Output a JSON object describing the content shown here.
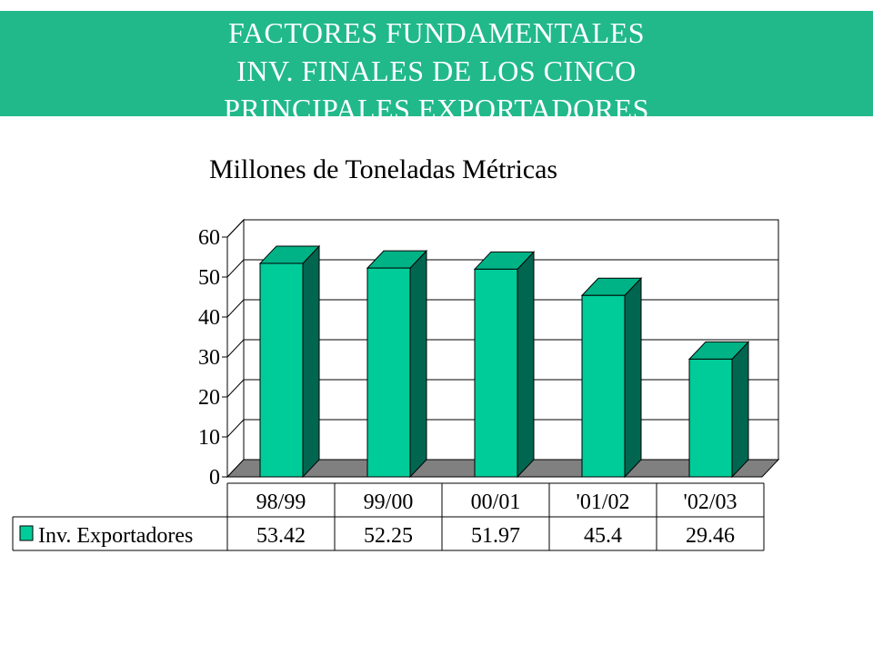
{
  "header": {
    "title_lines": [
      "FACTORES FUNDAMENTALES",
      "INV. FINALES DE LOS CINCO",
      "PRINCIPALES  EXPORTADORES"
    ]
  },
  "colors": {
    "banner": "#21b98a",
    "bar_front": "#00cc99",
    "bar_side": "#006650",
    "bar_top": "#00b386",
    "floor": "#808080"
  },
  "chart_data": {
    "type": "bar",
    "title": "Millones de Toneladas Métricas",
    "categories": [
      "98/99",
      "99/00",
      "00/01",
      "'01/02",
      "'02/03"
    ],
    "series": [
      {
        "name": "Inv. Exportadores",
        "values": [
          53.42,
          52.25,
          51.97,
          45.4,
          29.46
        ]
      }
    ],
    "value_labels": [
      "53.42",
      "52.25",
      "51.97",
      "45.4",
      "29.46"
    ],
    "ylim": [
      0,
      60
    ],
    "yticks": [
      0,
      10,
      20,
      30,
      40,
      50,
      60
    ],
    "grid": true,
    "data_table": true,
    "legend": "data-table"
  }
}
